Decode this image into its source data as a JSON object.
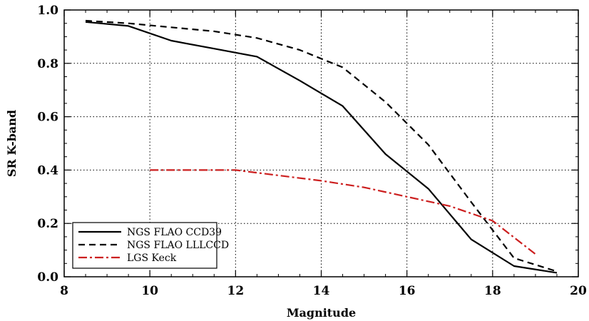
{
  "chart_data": {
    "type": "line",
    "xlabel": "Magnitude",
    "ylabel": "SR K-band",
    "xlim": [
      8,
      20
    ],
    "ylim": [
      0.0,
      1.0
    ],
    "xticks": [
      8,
      10,
      12,
      14,
      16,
      18,
      20
    ],
    "xtick_labels": [
      "8",
      "10",
      "12",
      "14",
      "16",
      "18",
      "20"
    ],
    "yticks": [
      0.0,
      0.2,
      0.4,
      0.6,
      0.8,
      1.0
    ],
    "ytick_labels": [
      "0.0",
      "0.2",
      "0.4",
      "0.6",
      "0.8",
      "1.0"
    ],
    "grid": true,
    "legend_position": "bottom-left",
    "series": [
      {
        "name": "NGS FLAO CCD39",
        "color": "#000000",
        "style": "solid",
        "x": [
          8.5,
          9.5,
          10.5,
          11.5,
          12.5,
          13.5,
          14.5,
          15.5,
          16.5,
          17.5,
          18.5,
          19.5
        ],
        "y": [
          0.955,
          0.94,
          0.885,
          0.855,
          0.825,
          0.735,
          0.64,
          0.46,
          0.33,
          0.14,
          0.04,
          0.015
        ]
      },
      {
        "name": "NGS FLAO LLLCCD",
        "color": "#000000",
        "style": "dashed",
        "x": [
          8.5,
          9.5,
          10.5,
          11.5,
          12.5,
          13.5,
          14.5,
          15.5,
          16.5,
          17.5,
          18.5,
          19.5
        ],
        "y": [
          0.96,
          0.95,
          0.935,
          0.92,
          0.895,
          0.85,
          0.785,
          0.655,
          0.495,
          0.28,
          0.07,
          0.02
        ]
      },
      {
        "name": "LGS Keck",
        "color": "#cc1f1f",
        "style": "dashdot",
        "x": [
          10,
          11,
          12,
          13,
          14,
          15,
          16,
          17,
          18,
          19
        ],
        "y": [
          0.4,
          0.4,
          0.4,
          0.38,
          0.36,
          0.335,
          0.3,
          0.265,
          0.21,
          0.085
        ]
      }
    ]
  }
}
